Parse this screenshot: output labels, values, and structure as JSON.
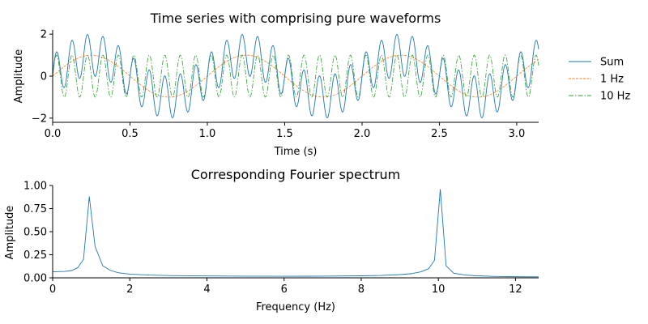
{
  "chart_data": [
    {
      "type": "line",
      "title": "Time series with comprising pure waveforms",
      "xlabel": "Time (s)",
      "ylabel": "Amplitude",
      "xlim": [
        0,
        3.1416
      ],
      "ylim": [
        -2.2,
        2.2
      ],
      "xticks": [
        0.0,
        0.5,
        1.0,
        1.5,
        2.0,
        2.5,
        3.0
      ],
      "xtick_labels": [
        "0.0",
        "0.5",
        "1.0",
        "1.5",
        "2.0",
        "2.5",
        "3.0"
      ],
      "yticks": [
        -2,
        0,
        2
      ],
      "ytick_labels": [
        "−2",
        "0",
        "2"
      ],
      "grid": false,
      "legend_position": "right",
      "series": [
        {
          "name": "Sum",
          "color": "#1f77b4",
          "style": "solid",
          "function": "sin(2π·1·t) + sin(2π·10·t)"
        },
        {
          "name": "1 Hz",
          "color": "#ff7f0e",
          "style": "dashed",
          "function": "sin(2π·1·t)"
        },
        {
          "name": "10 Hz",
          "color": "#2ca02c",
          "style": "dashdot",
          "function": "sin(2π·10·t)"
        }
      ]
    },
    {
      "type": "line",
      "title": "Corresponding Fourier spectrum",
      "xlabel": "Frequency (Hz)",
      "ylabel": "Amplitude",
      "xlim": [
        0,
        12.6
      ],
      "ylim": [
        0,
        1.0
      ],
      "xticks": [
        0,
        2,
        4,
        6,
        8,
        10,
        12
      ],
      "xtick_labels": [
        "0",
        "2",
        "4",
        "6",
        "8",
        "10",
        "12"
      ],
      "yticks": [
        0,
        0.25,
        0.5,
        0.75,
        1.0
      ],
      "ytick_labels": [
        "0.00",
        "0.25",
        "0.50",
        "0.75",
        "1.00"
      ],
      "grid": false,
      "series": [
        {
          "color": "#1f77b4",
          "x": [
            0.0,
            0.32,
            0.5,
            0.65,
            0.8,
            0.95,
            1.1,
            1.3,
            1.5,
            1.7,
            2.0,
            2.5,
            3.0,
            4.0,
            5.0,
            6.0,
            7.0,
            8.0,
            8.5,
            9.0,
            9.3,
            9.55,
            9.75,
            9.9,
            10.05,
            10.2,
            10.4,
            10.7,
            11.0,
            11.5,
            12.0,
            12.6
          ],
          "y": [
            0.065,
            0.07,
            0.08,
            0.11,
            0.2,
            0.88,
            0.34,
            0.13,
            0.08,
            0.055,
            0.04,
            0.03,
            0.025,
            0.02,
            0.018,
            0.017,
            0.018,
            0.022,
            0.026,
            0.035,
            0.045,
            0.065,
            0.1,
            0.19,
            0.96,
            0.13,
            0.05,
            0.03,
            0.022,
            0.015,
            0.012,
            0.01
          ]
        }
      ]
    }
  ]
}
